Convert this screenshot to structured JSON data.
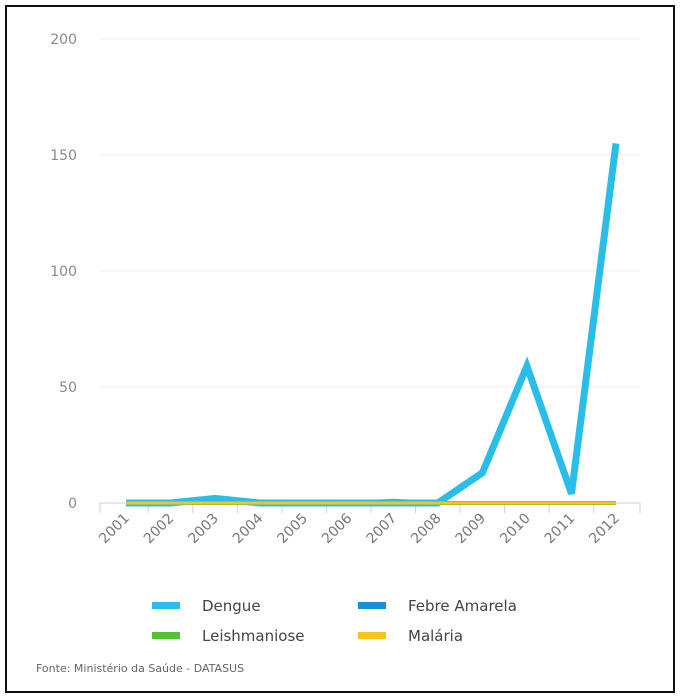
{
  "chart_data": {
    "type": "line",
    "x": [
      "2001",
      "2002",
      "2003",
      "2004",
      "2005",
      "2006",
      "2007",
      "2008",
      "2009",
      "2010",
      "2011",
      "2012"
    ],
    "series": [
      {
        "name": "Dengue",
        "color": "#29bde9",
        "values": [
          0,
          0,
          2,
          0,
          0,
          0,
          0,
          0,
          13,
          59,
          4,
          155
        ]
      },
      {
        "name": "Febre Amarela",
        "color": "#1a8fd6",
        "values": [
          0,
          0,
          0,
          0,
          0,
          0,
          0,
          0,
          0,
          0,
          0,
          0
        ]
      },
      {
        "name": "Leishmaniose",
        "color": "#52c234",
        "values": [
          0,
          0,
          0,
          0,
          0,
          0,
          1,
          0,
          0,
          0,
          0,
          0
        ]
      },
      {
        "name": "Malária",
        "color": "#f7c31c",
        "values": [
          0,
          0,
          0,
          0,
          0,
          0,
          0,
          0,
          0,
          0,
          0,
          0
        ]
      }
    ],
    "ylim": [
      0,
      200
    ],
    "yticks": [
      "0",
      "50",
      "100",
      "150",
      "200"
    ],
    "grid": true,
    "legend_position": "bottom"
  },
  "source": "Fonte: Ministério da Saúde - DATASUS"
}
